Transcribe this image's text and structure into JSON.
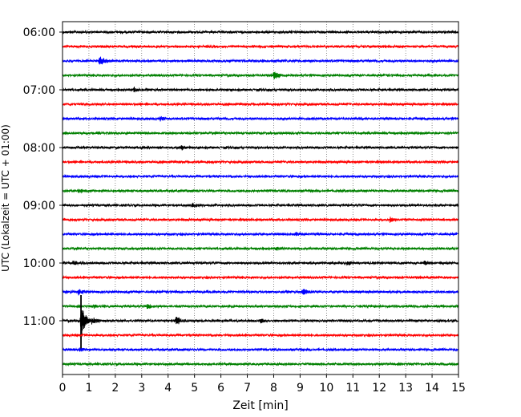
{
  "chart_data": {
    "type": "line",
    "title": "",
    "xlabel": "Zeit  [min]",
    "ylabel": "UTC (Lokalzeit = UTC + 01:00)",
    "xlim": [
      0,
      15
    ],
    "x_ticks": [
      "0",
      "1",
      "2",
      "3",
      "4",
      "5",
      "6",
      "7",
      "8",
      "9",
      "10",
      "11",
      "12",
      "13",
      "14",
      "15"
    ],
    "grid": "vertical dotted lines at each minute",
    "row_interval_minutes": 15,
    "y_tick_labels": [
      {
        "label": "06:00",
        "row": 0
      },
      {
        "label": "07:00",
        "row": 4
      },
      {
        "label": "08:00",
        "row": 8
      },
      {
        "label": "09:00",
        "row": 12
      },
      {
        "label": "10:00",
        "row": 16
      },
      {
        "label": "11:00",
        "row": 20
      }
    ],
    "colors": [
      "#000000",
      "#ff0000",
      "#0000ff",
      "#008000"
    ],
    "rows": [
      {
        "start": "06:00",
        "color": "#000000",
        "events": []
      },
      {
        "start": "06:15",
        "color": "#ff0000",
        "events": []
      },
      {
        "start": "06:30",
        "color": "#0000ff",
        "events": [
          {
            "t": 1.4,
            "amp": 1.0
          }
        ]
      },
      {
        "start": "06:45",
        "color": "#008000",
        "events": [
          {
            "t": 8.0,
            "amp": 1.0
          }
        ]
      },
      {
        "start": "07:00",
        "color": "#000000",
        "events": [
          {
            "t": 2.7,
            "amp": 0.5
          }
        ]
      },
      {
        "start": "07:15",
        "color": "#ff0000",
        "events": []
      },
      {
        "start": "07:30",
        "color": "#0000ff",
        "events": [
          {
            "t": 3.7,
            "amp": 0.5
          }
        ]
      },
      {
        "start": "07:45",
        "color": "#008000",
        "events": []
      },
      {
        "start": "08:00",
        "color": "#000000",
        "events": [
          {
            "t": 4.5,
            "amp": 0.5
          }
        ]
      },
      {
        "start": "08:15",
        "color": "#ff0000",
        "events": []
      },
      {
        "start": "08:30",
        "color": "#0000ff",
        "events": []
      },
      {
        "start": "08:45",
        "color": "#008000",
        "events": [
          {
            "t": 0.6,
            "amp": 0.5
          }
        ]
      },
      {
        "start": "09:00",
        "color": "#000000",
        "events": [
          {
            "t": 4.9,
            "amp": 0.5
          }
        ]
      },
      {
        "start": "09:15",
        "color": "#ff0000",
        "events": [
          {
            "t": 12.4,
            "amp": 0.6
          }
        ]
      },
      {
        "start": "09:30",
        "color": "#0000ff",
        "events": [
          {
            "t": 8.8,
            "amp": 0.4
          }
        ]
      },
      {
        "start": "09:45",
        "color": "#008000",
        "events": [
          {
            "t": 8.1,
            "amp": 0.4
          }
        ]
      },
      {
        "start": "10:00",
        "color": "#000000",
        "events": [
          {
            "t": 0.4,
            "amp": 0.4
          },
          {
            "t": 10.8,
            "amp": 0.5
          },
          {
            "t": 13.7,
            "amp": 0.6
          }
        ]
      },
      {
        "start": "10:15",
        "color": "#ff0000",
        "events": []
      },
      {
        "start": "10:30",
        "color": "#0000ff",
        "events": [
          {
            "t": 0.6,
            "amp": 0.7
          },
          {
            "t": 9.1,
            "amp": 0.9
          }
        ]
      },
      {
        "start": "10:45",
        "color": "#008000",
        "events": [
          {
            "t": 1.2,
            "amp": 0.4
          },
          {
            "t": 3.2,
            "amp": 0.6
          }
        ]
      },
      {
        "start": "11:00",
        "color": "#000000",
        "events": [
          {
            "t": 0.7,
            "amp": 3.2
          },
          {
            "t": 1.1,
            "amp": 1.0
          },
          {
            "t": 4.3,
            "amp": 1.0
          },
          {
            "t": 7.5,
            "amp": 0.5
          }
        ]
      },
      {
        "start": "11:15",
        "color": "#ff0000",
        "events": []
      },
      {
        "start": "11:30",
        "color": "#0000ff",
        "events": [
          {
            "t": 0.65,
            "amp": 0.3
          }
        ]
      },
      {
        "start": "11:45",
        "color": "#008000",
        "events": []
      }
    ]
  }
}
